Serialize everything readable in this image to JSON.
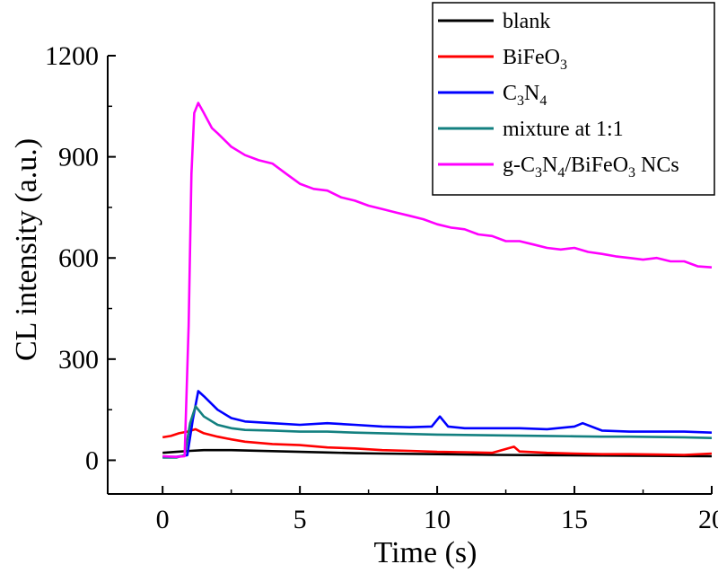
{
  "chart_data": {
    "type": "line",
    "title": "",
    "xlabel": "Time (s)",
    "ylabel": "CL intensity (a.u.)",
    "xlim": [
      -2,
      20
    ],
    "ylim": [
      -100,
      1200
    ],
    "xticks": [
      0,
      5,
      10,
      15,
      20
    ],
    "yticks": [
      0,
      300,
      600,
      900,
      1200
    ],
    "xtick_labels": [
      "0",
      "5",
      "10",
      "15",
      "20"
    ],
    "ytick_labels": [
      "0",
      "300",
      "600",
      "900",
      "1200"
    ],
    "grid": false,
    "legend_position": "top-right",
    "series": [
      {
        "name": "blank",
        "legend": [
          {
            "t": "blank"
          }
        ],
        "color": "#000000",
        "x": [
          0,
          0.5,
          1,
          1.5,
          2,
          2.5,
          3,
          4,
          5,
          6,
          7,
          8,
          10,
          12,
          14,
          16,
          18,
          20
        ],
        "y": [
          22,
          25,
          28,
          30,
          30,
          30,
          29,
          27,
          25,
          23,
          21,
          20,
          18,
          16,
          15,
          14,
          13,
          12
        ]
      },
      {
        "name": "BiFeO3",
        "legend": [
          {
            "t": "BiFeO"
          },
          {
            "t": "3",
            "sub": true
          }
        ],
        "color": "#ff0000",
        "x": [
          0,
          0.3,
          0.6,
          0.9,
          1.2,
          1.5,
          2,
          2.5,
          3,
          4,
          5,
          6,
          7,
          8,
          9,
          10,
          11,
          12,
          12.8,
          13,
          14,
          15,
          16,
          17,
          18,
          19,
          20
        ],
        "y": [
          68,
          72,
          80,
          85,
          92,
          80,
          70,
          62,
          55,
          48,
          45,
          38,
          35,
          30,
          28,
          25,
          24,
          22,
          40,
          26,
          22,
          20,
          18,
          18,
          17,
          16,
          20
        ]
      },
      {
        "name": "C3N4",
        "legend": [
          {
            "t": "C"
          },
          {
            "t": "3",
            "sub": true
          },
          {
            "t": "N"
          },
          {
            "t": "4",
            "sub": true
          }
        ],
        "color": "#0000ff",
        "x": [
          0,
          0.5,
          0.9,
          1.1,
          1.3,
          1.5,
          2,
          2.5,
          3,
          4,
          5,
          6,
          7,
          8,
          9,
          9.8,
          10.1,
          10.4,
          11,
          12,
          13,
          14,
          15,
          15.3,
          16,
          17,
          18,
          19,
          20
        ],
        "y": [
          10,
          10,
          15,
          120,
          205,
          190,
          150,
          125,
          115,
          110,
          105,
          110,
          105,
          100,
          98,
          100,
          130,
          100,
          95,
          95,
          95,
          92,
          100,
          110,
          88,
          85,
          85,
          85,
          82
        ]
      },
      {
        "name": "mixture at 1:1",
        "legend": [
          {
            "t": "mixture at 1:1"
          }
        ],
        "color": "#138080",
        "x": [
          0,
          0.5,
          0.8,
          1,
          1.2,
          1.5,
          2,
          2.5,
          3,
          4,
          5,
          6,
          7,
          8,
          9,
          10,
          11,
          12,
          13,
          14,
          15,
          16,
          17,
          18,
          19,
          20
        ],
        "y": [
          8,
          8,
          15,
          110,
          160,
          130,
          105,
          95,
          90,
          88,
          85,
          85,
          82,
          80,
          78,
          76,
          75,
          74,
          73,
          72,
          71,
          70,
          70,
          69,
          68,
          66
        ]
      },
      {
        "name": "g-C3N4/BiFeO3 NCs",
        "legend": [
          {
            "t": "g-C"
          },
          {
            "t": "3",
            "sub": true
          },
          {
            "t": "N"
          },
          {
            "t": "4",
            "sub": true
          },
          {
            "t": "/BiFeO"
          },
          {
            "t": "3",
            "sub": true
          },
          {
            "t": " NCs"
          }
        ],
        "color": "#ff00ff",
        "x": [
          0,
          0.5,
          0.8,
          0.95,
          1.05,
          1.15,
          1.3,
          1.5,
          1.8,
          2,
          2.5,
          3,
          3.5,
          4,
          4.5,
          5,
          5.5,
          6,
          6.5,
          7,
          7.5,
          8,
          8.5,
          9,
          9.5,
          10,
          10.5,
          11,
          11.5,
          12,
          12.5,
          13,
          13.5,
          14,
          14.5,
          15,
          15.5,
          16,
          16.5,
          17,
          17.5,
          18,
          18.5,
          19,
          19.5,
          20
        ],
        "y": [
          12,
          10,
          12,
          400,
          850,
          1030,
          1060,
          1030,
          985,
          970,
          930,
          905,
          890,
          880,
          850,
          820,
          805,
          800,
          780,
          770,
          755,
          745,
          735,
          725,
          715,
          700,
          690,
          685,
          670,
          665,
          650,
          650,
          640,
          630,
          625,
          630,
          618,
          612,
          605,
          600,
          595,
          600,
          590,
          590,
          575,
          572
        ]
      }
    ]
  }
}
